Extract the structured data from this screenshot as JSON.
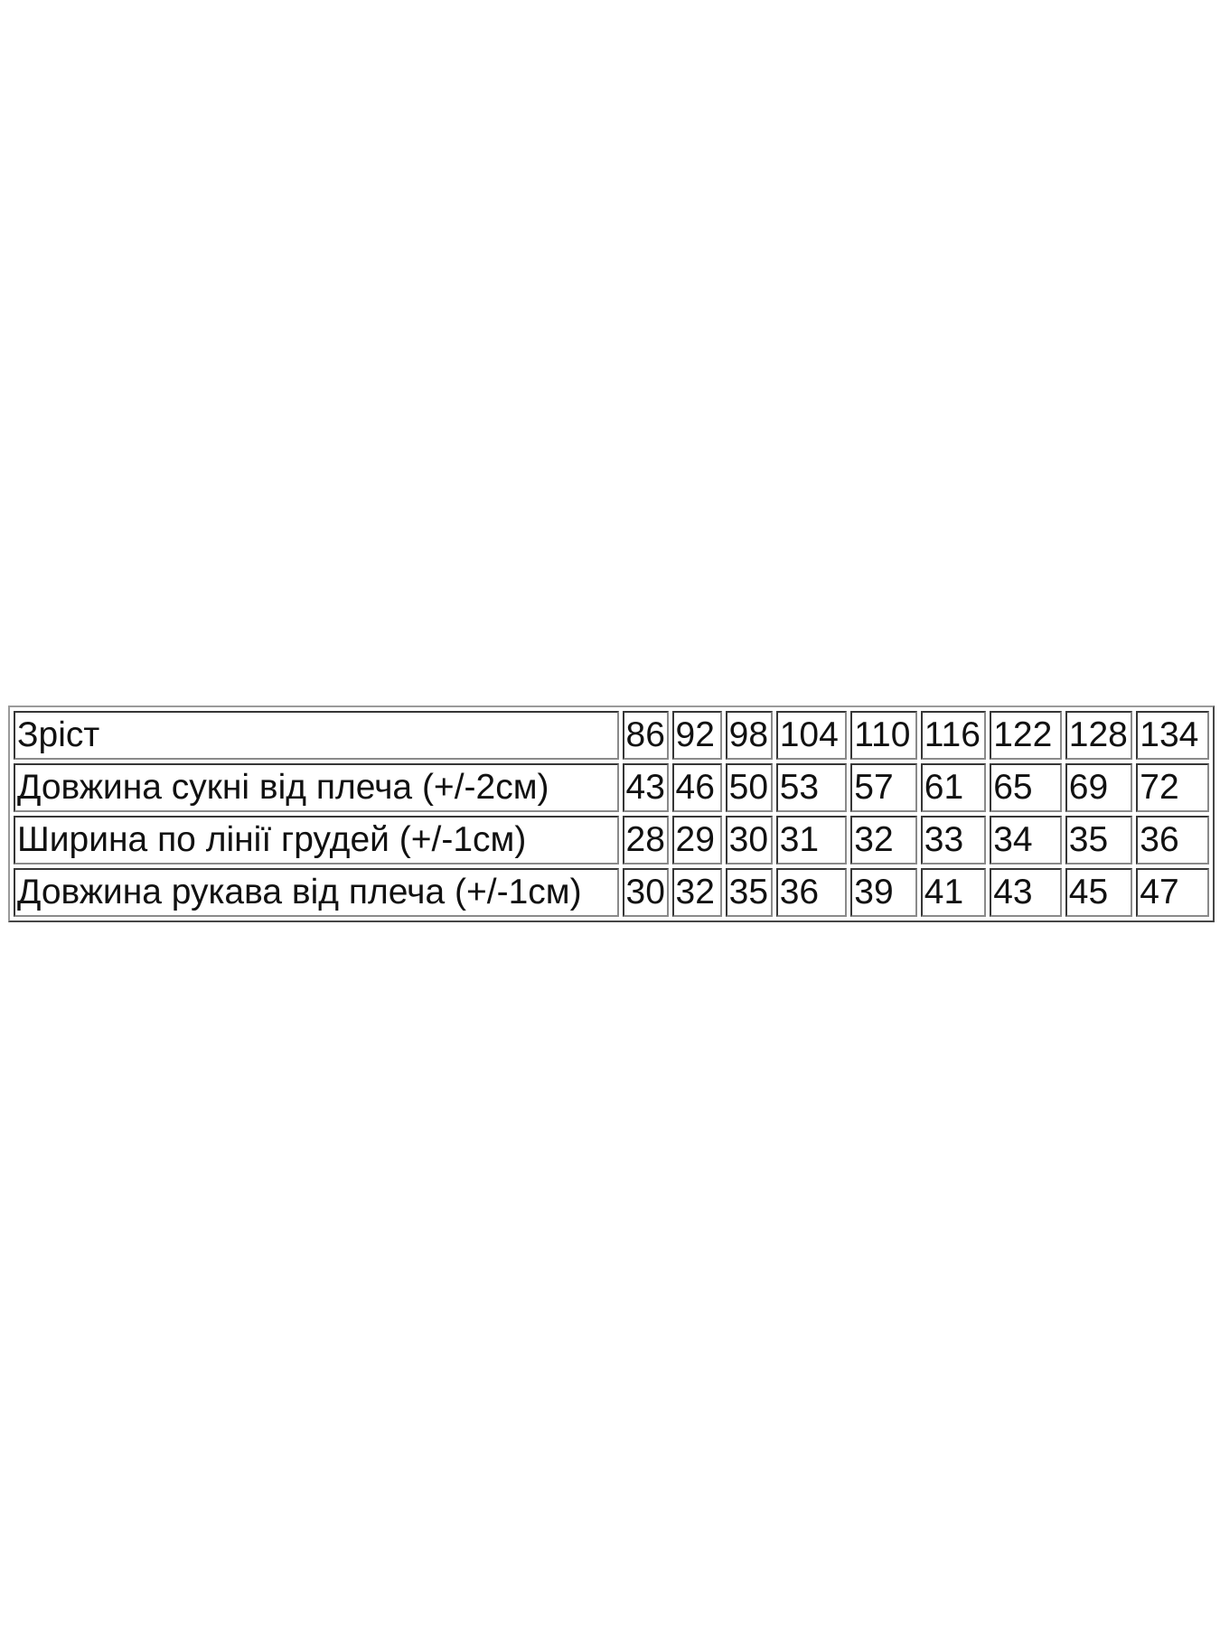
{
  "table": {
    "rows": [
      {
        "label": "Зріст",
        "values": [
          "86",
          "92",
          "98",
          "104",
          "110",
          "116",
          "122",
          "128",
          "134"
        ]
      },
      {
        "label": "Довжина сукні від плеча (+/-2см)",
        "values": [
          "43",
          "46",
          "50",
          "53",
          "57",
          "61",
          "65",
          "69",
          "72"
        ]
      },
      {
        "label": "Ширина по лінії грудей (+/-1см)",
        "values": [
          "28",
          "29",
          "30",
          "31",
          "32",
          "33",
          "34",
          "35",
          "36"
        ]
      },
      {
        "label": "Довжина рукава від плеча (+/-1см)",
        "values": [
          "30",
          "32",
          "35",
          "36",
          "39",
          "41",
          "43",
          "45",
          "47"
        ]
      }
    ]
  }
}
